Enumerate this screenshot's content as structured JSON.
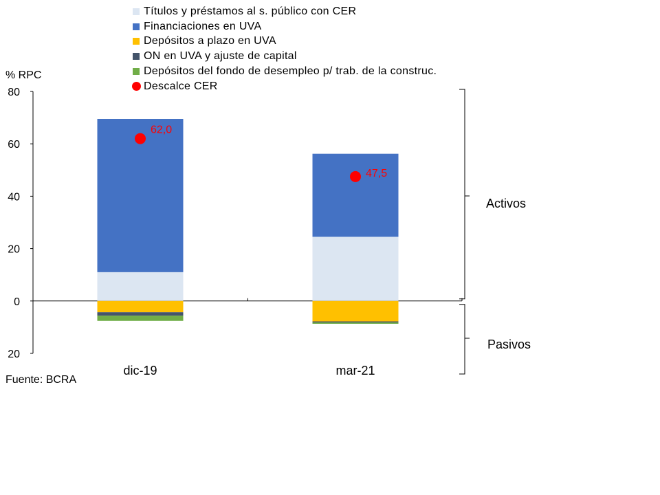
{
  "chart_data": {
    "type": "bar",
    "stacked": true,
    "ylabel": "% RPC",
    "ylim": [
      -20,
      80
    ],
    "yticks": [
      {
        "value": 80,
        "label": "80"
      },
      {
        "value": 60,
        "label": "60"
      },
      {
        "value": 40,
        "label": "40"
      },
      {
        "value": 20,
        "label": "20"
      },
      {
        "value": 0,
        "label": "0"
      },
      {
        "value": -20,
        "label": "20"
      }
    ],
    "categories": [
      "dic-19",
      "mar-21"
    ],
    "series": [
      {
        "name": "Títulos y préstamos al s. público con CER",
        "color": "#dce6f2",
        "values": [
          11.0,
          24.5
        ]
      },
      {
        "name": "Financiaciones en UVA",
        "color": "#4472c4",
        "values": [
          58.5,
          31.7
        ]
      },
      {
        "name": "Depósitos a plazo en UVA",
        "color": "#ffc000",
        "values": [
          -4.3,
          -7.8
        ]
      },
      {
        "name": "ON en UVA y ajuste de capital",
        "color": "#44546a",
        "values": [
          -1.3,
          -0.4
        ]
      },
      {
        "name": "Depósitos del fondo de desempleo p/ trab. de la construc.",
        "color": "#70ad47",
        "values": [
          -2.0,
          -0.5
        ]
      }
    ],
    "marker_series": {
      "name": "Descalce CER",
      "color": "#ff0000",
      "values": [
        62.0,
        47.5
      ],
      "labels": [
        "62,0",
        "47,5"
      ]
    },
    "annotations": {
      "positive": "Activos",
      "negative": "Pasivos"
    },
    "source": "Fuente: BCRA",
    "grid": false,
    "legend_position": "top"
  }
}
